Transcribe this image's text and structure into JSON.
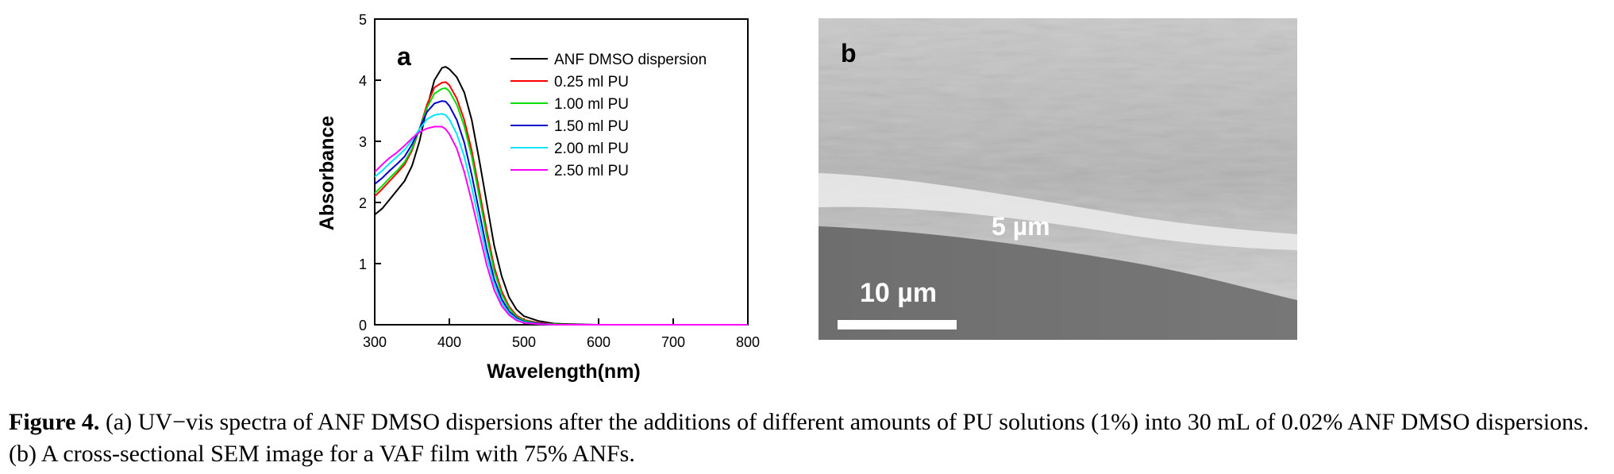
{
  "chart_data": {
    "type": "line",
    "panel_label": "a",
    "xlabel": "Wavelength(nm)",
    "ylabel": "Absorbance",
    "xlim": [
      300,
      800
    ],
    "ylim": [
      0,
      5
    ],
    "xticks": [
      300,
      400,
      500,
      600,
      700,
      800
    ],
    "yticks": [
      0,
      1,
      2,
      3,
      4,
      5
    ],
    "grid": false,
    "legend_position": "top-right",
    "series": [
      {
        "name": "ANF DMSO dispersion",
        "color": "#000000",
        "x": [
          300,
          310,
          320,
          330,
          340,
          350,
          360,
          370,
          380,
          390,
          395,
          400,
          410,
          420,
          430,
          440,
          450,
          460,
          470,
          480,
          490,
          500,
          520,
          540,
          560,
          600,
          700,
          800
        ],
        "y": [
          1.8,
          1.9,
          2.05,
          2.2,
          2.35,
          2.6,
          3.0,
          3.55,
          4.0,
          4.2,
          4.22,
          4.18,
          4.05,
          3.8,
          3.35,
          2.7,
          2.0,
          1.3,
          0.8,
          0.45,
          0.25,
          0.14,
          0.06,
          0.02,
          0.01,
          0.0,
          0.0,
          0.0
        ]
      },
      {
        "name": "0.25 ml PU",
        "color": "#ff0000",
        "x": [
          300,
          310,
          320,
          330,
          340,
          350,
          360,
          370,
          380,
          390,
          395,
          400,
          410,
          420,
          430,
          440,
          450,
          460,
          470,
          480,
          490,
          500,
          520,
          540,
          560,
          600,
          700,
          800
        ],
        "y": [
          2.1,
          2.22,
          2.35,
          2.48,
          2.62,
          2.85,
          3.2,
          3.6,
          3.88,
          3.96,
          3.97,
          3.92,
          3.7,
          3.35,
          2.85,
          2.2,
          1.55,
          0.95,
          0.55,
          0.3,
          0.15,
          0.08,
          0.03,
          0.01,
          0.0,
          0.0,
          0.0,
          0.0
        ]
      },
      {
        "name": "1.00 ml PU",
        "color": "#00dd00",
        "x": [
          300,
          310,
          320,
          330,
          340,
          350,
          360,
          370,
          380,
          390,
          395,
          400,
          410,
          420,
          430,
          440,
          450,
          460,
          470,
          480,
          490,
          500,
          520,
          540,
          560,
          600,
          700,
          800
        ],
        "y": [
          2.15,
          2.27,
          2.4,
          2.52,
          2.66,
          2.88,
          3.2,
          3.55,
          3.78,
          3.86,
          3.87,
          3.82,
          3.6,
          3.25,
          2.75,
          2.1,
          1.45,
          0.88,
          0.5,
          0.27,
          0.13,
          0.07,
          0.02,
          0.01,
          0.0,
          0.0,
          0.0,
          0.0
        ]
      },
      {
        "name": "1.50 ml PU",
        "color": "#0000cc",
        "x": [
          300,
          310,
          320,
          330,
          340,
          350,
          360,
          370,
          380,
          390,
          395,
          400,
          410,
          420,
          430,
          440,
          450,
          460,
          470,
          480,
          490,
          500,
          520,
          540,
          560,
          600,
          700,
          800
        ],
        "y": [
          2.3,
          2.4,
          2.52,
          2.63,
          2.75,
          2.95,
          3.2,
          3.48,
          3.62,
          3.66,
          3.65,
          3.58,
          3.35,
          2.98,
          2.45,
          1.85,
          1.25,
          0.75,
          0.42,
          0.22,
          0.11,
          0.05,
          0.02,
          0.0,
          0.0,
          0.0,
          0.0,
          0.0
        ]
      },
      {
        "name": "2.00 ml PU",
        "color": "#00e5ff",
        "x": [
          300,
          310,
          320,
          330,
          340,
          350,
          360,
          370,
          380,
          390,
          395,
          400,
          410,
          420,
          430,
          440,
          450,
          460,
          470,
          480,
          490,
          500,
          520,
          540,
          560,
          600,
          700,
          800
        ],
        "y": [
          2.42,
          2.52,
          2.64,
          2.75,
          2.86,
          3.02,
          3.2,
          3.36,
          3.43,
          3.45,
          3.43,
          3.36,
          3.12,
          2.75,
          2.25,
          1.68,
          1.12,
          0.66,
          0.36,
          0.19,
          0.09,
          0.04,
          0.01,
          0.0,
          0.0,
          0.0,
          0.0,
          0.0
        ]
      },
      {
        "name": "2.50 ml PU",
        "color": "#ff00ff",
        "x": [
          300,
          310,
          320,
          330,
          340,
          350,
          360,
          370,
          380,
          390,
          395,
          400,
          410,
          420,
          430,
          440,
          450,
          460,
          470,
          480,
          490,
          500,
          520,
          540,
          560,
          600,
          700,
          800
        ],
        "y": [
          2.5,
          2.62,
          2.73,
          2.82,
          2.93,
          3.05,
          3.15,
          3.21,
          3.24,
          3.24,
          3.2,
          3.12,
          2.88,
          2.5,
          2.02,
          1.5,
          0.98,
          0.57,
          0.31,
          0.16,
          0.07,
          0.03,
          0.01,
          0.0,
          0.0,
          0.0,
          0.0,
          0.0
        ]
      }
    ]
  },
  "sem_image": {
    "panel_label": "b",
    "thickness_label": "5 µm",
    "scale_bar_label": "10 µm"
  },
  "caption": {
    "label": "Figure 4.",
    "text": " (a) UV−vis spectra of ANF DMSO dispersions after the additions of different amounts of PU solutions (1%) into 30 mL of 0.02% ANF DMSO dispersions. (b) A cross-sectional SEM image for a VAF film with 75% ANFs."
  }
}
